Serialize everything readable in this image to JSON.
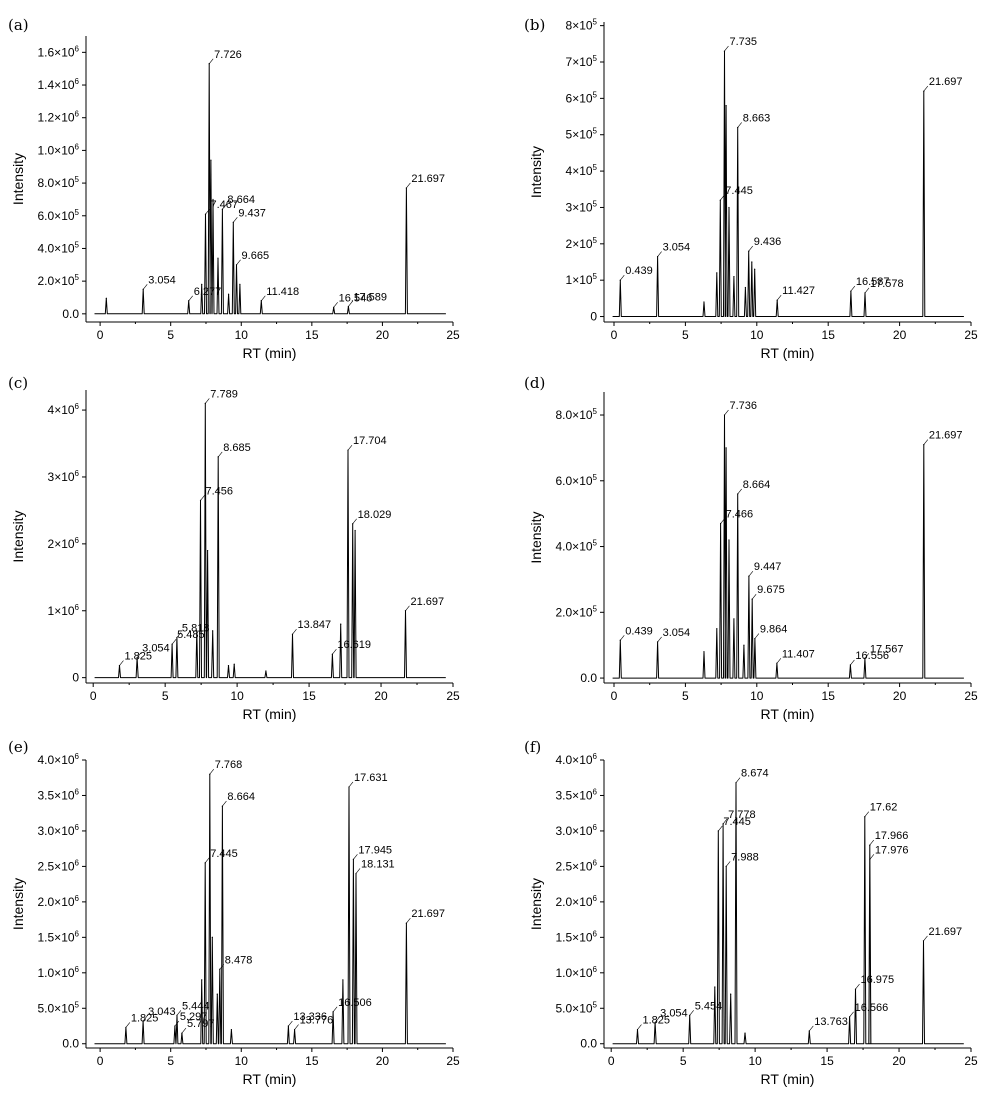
{
  "chart_data": [
    {
      "type": "line",
      "panel_label": "(a)",
      "xlabel": "RT (min)",
      "ylabel": "Intensity",
      "xlim": [
        -1,
        25
      ],
      "ylim": [
        -50000,
        1700000
      ],
      "xticks": [
        "0",
        "5",
        "10",
        "15",
        "20",
        "25"
      ],
      "yticks": [
        {
          "base": "0.0",
          "exp": ""
        },
        {
          "base": "2.0×10",
          "exp": "5"
        },
        {
          "base": "4.0×10",
          "exp": "5"
        },
        {
          "base": "6.0×10",
          "exp": "5"
        },
        {
          "base": "8.0×10",
          "exp": "5"
        },
        {
          "base": "1.0×10",
          "exp": "6"
        },
        {
          "base": "1.2×10",
          "exp": "6"
        },
        {
          "base": "1.4×10",
          "exp": "6"
        },
        {
          "base": "1.6×10",
          "exp": "6"
        }
      ],
      "ytick_values": [
        0,
        200000,
        400000,
        600000,
        800000,
        1000000,
        1200000,
        1400000,
        1600000
      ],
      "xtick_values": [
        0,
        5,
        10,
        15,
        20,
        25
      ],
      "peaks": [
        {
          "rt": 0.44,
          "y": 95000
        },
        {
          "rt": 3.054,
          "y": 150000,
          "label": "3.054"
        },
        {
          "rt": 6.277,
          "y": 80000,
          "label": "6.277"
        },
        {
          "rt": 7.2,
          "y": 180000
        },
        {
          "rt": 7.467,
          "y": 610000,
          "label": "7.467"
        },
        {
          "rt": 7.726,
          "y": 1530000,
          "label": "7.726"
        },
        {
          "rt": 7.85,
          "y": 940000
        },
        {
          "rt": 8.0,
          "y": 700000
        },
        {
          "rt": 8.35,
          "y": 340000
        },
        {
          "rt": 8.664,
          "y": 640000,
          "label": "8.664"
        },
        {
          "rt": 9.1,
          "y": 120000
        },
        {
          "rt": 9.437,
          "y": 560000,
          "label": "9.437"
        },
        {
          "rt": 9.665,
          "y": 300000,
          "label": "9.665"
        },
        {
          "rt": 9.9,
          "y": 180000
        },
        {
          "rt": 11.418,
          "y": 80000,
          "label": "11.418"
        },
        {
          "rt": 16.546,
          "y": 40000,
          "label": "16.546"
        },
        {
          "rt": 17.589,
          "y": 45000,
          "label": "17.589"
        },
        {
          "rt": 21.697,
          "y": 770000,
          "label": "21.697"
        }
      ]
    },
    {
      "type": "line",
      "panel_label": "(b)",
      "xlabel": "RT (min)",
      "ylabel": "Intensity",
      "xlim": [
        -0.7,
        25
      ],
      "ylim": [
        -15000,
        810000
      ],
      "xticks": [
        "0",
        "5",
        "10",
        "15",
        "20",
        "25"
      ],
      "yticks": [
        {
          "base": "0",
          "exp": ""
        },
        {
          "base": "1×10",
          "exp": "5"
        },
        {
          "base": "2×10",
          "exp": "5"
        },
        {
          "base": "3×10",
          "exp": "5"
        },
        {
          "base": "4×10",
          "exp": "5"
        },
        {
          "base": "5×10",
          "exp": "5"
        },
        {
          "base": "6×10",
          "exp": "5"
        },
        {
          "base": "7×10",
          "exp": "5"
        },
        {
          "base": "8×10",
          "exp": "5"
        }
      ],
      "ytick_values": [
        0,
        100000,
        200000,
        300000,
        400000,
        500000,
        600000,
        700000,
        800000
      ],
      "xtick_values": [
        0,
        5,
        10,
        15,
        20,
        25
      ],
      "peaks": [
        {
          "rt": 0.439,
          "y": 100000,
          "label": "0.439"
        },
        {
          "rt": 3.054,
          "y": 165000,
          "label": "3.054"
        },
        {
          "rt": 6.3,
          "y": 40000
        },
        {
          "rt": 7.2,
          "y": 120000
        },
        {
          "rt": 7.445,
          "y": 320000,
          "label": "7.445"
        },
        {
          "rt": 7.735,
          "y": 730000,
          "label": "7.735"
        },
        {
          "rt": 7.85,
          "y": 580000
        },
        {
          "rt": 8.05,
          "y": 300000
        },
        {
          "rt": 8.4,
          "y": 110000
        },
        {
          "rt": 8.663,
          "y": 520000,
          "label": "8.663"
        },
        {
          "rt": 9.2,
          "y": 80000
        },
        {
          "rt": 9.436,
          "y": 180000,
          "label": "9.436"
        },
        {
          "rt": 9.65,
          "y": 150000
        },
        {
          "rt": 9.85,
          "y": 130000
        },
        {
          "rt": 11.427,
          "y": 45000,
          "label": "11.427"
        },
        {
          "rt": 16.587,
          "y": 70000,
          "label": "16.587"
        },
        {
          "rt": 17.578,
          "y": 65000,
          "label": "17.578"
        },
        {
          "rt": 21.697,
          "y": 620000,
          "label": "21.697"
        }
      ]
    },
    {
      "type": "line",
      "panel_label": "(c)",
      "xlabel": "RT (min)",
      "ylabel": "Intensity",
      "xlim": [
        -0.5,
        25
      ],
      "ylim": [
        -80000,
        4300000
      ],
      "xticks": [
        "0",
        "5",
        "10",
        "15",
        "20",
        "25"
      ],
      "yticks": [
        {
          "base": "0",
          "exp": ""
        },
        {
          "base": "1×10",
          "exp": "6"
        },
        {
          "base": "2×10",
          "exp": "6"
        },
        {
          "base": "3×10",
          "exp": "6"
        },
        {
          "base": "4×10",
          "exp": "6"
        }
      ],
      "ytick_values": [
        0,
        1000000,
        2000000,
        3000000,
        4000000
      ],
      "xtick_values": [
        0,
        5,
        10,
        15,
        20,
        25
      ],
      "peaks": [
        {
          "rt": 1.825,
          "y": 180000,
          "label": "1.825"
        },
        {
          "rt": 3.054,
          "y": 300000,
          "label": "3.054"
        },
        {
          "rt": 5.485,
          "y": 500000,
          "label": "5.485"
        },
        {
          "rt": 5.818,
          "y": 600000,
          "label": "5.818"
        },
        {
          "rt": 7.2,
          "y": 700000
        },
        {
          "rt": 7.456,
          "y": 2650000,
          "label": "7.456"
        },
        {
          "rt": 7.789,
          "y": 4100000,
          "label": "7.789"
        },
        {
          "rt": 7.95,
          "y": 1900000
        },
        {
          "rt": 8.3,
          "y": 700000
        },
        {
          "rt": 8.685,
          "y": 3300000,
          "label": "8.685"
        },
        {
          "rt": 9.4,
          "y": 180000
        },
        {
          "rt": 9.8,
          "y": 200000
        },
        {
          "rt": 12.0,
          "y": 100000
        },
        {
          "rt": 13.847,
          "y": 650000,
          "label": "13.847"
        },
        {
          "rt": 16.619,
          "y": 350000,
          "label": "16.619"
        },
        {
          "rt": 17.2,
          "y": 800000
        },
        {
          "rt": 17.704,
          "y": 3400000,
          "label": "17.704"
        },
        {
          "rt": 18.029,
          "y": 2300000,
          "label": "18.029"
        },
        {
          "rt": 18.2,
          "y": 2200000
        },
        {
          "rt": 21.697,
          "y": 1000000,
          "label": "21.697"
        }
      ]
    },
    {
      "type": "line",
      "panel_label": "(d)",
      "xlabel": "RT (min)",
      "ylabel": "Intensity",
      "xlim": [
        -0.7,
        25
      ],
      "ylim": [
        -15000,
        870000
      ],
      "xticks": [
        "0",
        "5",
        "10",
        "15",
        "20",
        "25"
      ],
      "yticks": [
        {
          "base": "0.0",
          "exp": ""
        },
        {
          "base": "2.0×10",
          "exp": "5"
        },
        {
          "base": "4.0×10",
          "exp": "5"
        },
        {
          "base": "6.0×10",
          "exp": "5"
        },
        {
          "base": "8.0×10",
          "exp": "5"
        }
      ],
      "ytick_values": [
        0,
        200000,
        400000,
        600000,
        800000
      ],
      "xtick_values": [
        0,
        5,
        10,
        15,
        20,
        25
      ],
      "peaks": [
        {
          "rt": 0.439,
          "y": 115000,
          "label": "0.439"
        },
        {
          "rt": 3.054,
          "y": 110000,
          "label": "3.054"
        },
        {
          "rt": 6.3,
          "y": 80000
        },
        {
          "rt": 7.2,
          "y": 150000
        },
        {
          "rt": 7.466,
          "y": 470000,
          "label": "7.466"
        },
        {
          "rt": 7.736,
          "y": 800000,
          "label": "7.736"
        },
        {
          "rt": 7.85,
          "y": 700000
        },
        {
          "rt": 8.05,
          "y": 420000
        },
        {
          "rt": 8.4,
          "y": 180000
        },
        {
          "rt": 8.664,
          "y": 560000,
          "label": "8.664"
        },
        {
          "rt": 9.1,
          "y": 100000
        },
        {
          "rt": 9.447,
          "y": 310000,
          "label": "9.447"
        },
        {
          "rt": 9.675,
          "y": 240000,
          "label": "9.675"
        },
        {
          "rt": 9.864,
          "y": 120000,
          "label": "9.864"
        },
        {
          "rt": 11.407,
          "y": 45000,
          "label": "11.407"
        },
        {
          "rt": 16.556,
          "y": 40000,
          "label": "16.556"
        },
        {
          "rt": 17.567,
          "y": 60000,
          "label": "17.567"
        },
        {
          "rt": 21.697,
          "y": 710000,
          "label": "21.697"
        }
      ]
    },
    {
      "type": "line",
      "panel_label": "(e)",
      "xlabel": "RT (min)",
      "ylabel": "Intensity",
      "xlim": [
        -1,
        25
      ],
      "ylim": [
        -60000,
        4000000
      ],
      "xticks": [
        "0",
        "5",
        "10",
        "15",
        "20",
        "25"
      ],
      "yticks": [
        {
          "base": "0.0",
          "exp": ""
        },
        {
          "base": "5.0×10",
          "exp": "5"
        },
        {
          "base": "1.0×10",
          "exp": "6"
        },
        {
          "base": "1.5×10",
          "exp": "6"
        },
        {
          "base": "2.0×10",
          "exp": "6"
        },
        {
          "base": "2.5×10",
          "exp": "6"
        },
        {
          "base": "3.0×10",
          "exp": "6"
        },
        {
          "base": "3.5×10",
          "exp": "6"
        },
        {
          "base": "4.0×10",
          "exp": "6"
        }
      ],
      "ytick_values": [
        0,
        500000,
        1000000,
        1500000,
        2000000,
        2500000,
        3000000,
        3500000,
        4000000
      ],
      "xtick_values": [
        0,
        5,
        10,
        15,
        20,
        25
      ],
      "peaks": [
        {
          "rt": 1.825,
          "y": 230000,
          "label": "1.825"
        },
        {
          "rt": 3.043,
          "y": 320000,
          "label": "3.043"
        },
        {
          "rt": 5.297,
          "y": 250000,
          "label": "5.297"
        },
        {
          "rt": 5.444,
          "y": 400000,
          "label": "5.444"
        },
        {
          "rt": 5.797,
          "y": 150000,
          "label": "5.797"
        },
        {
          "rt": 7.2,
          "y": 900000
        },
        {
          "rt": 7.445,
          "y": 2550000,
          "label": "7.445"
        },
        {
          "rt": 7.768,
          "y": 3800000,
          "label": "7.768"
        },
        {
          "rt": 7.95,
          "y": 1500000
        },
        {
          "rt": 8.3,
          "y": 700000
        },
        {
          "rt": 8.478,
          "y": 1050000,
          "label": "8.478"
        },
        {
          "rt": 8.664,
          "y": 3350000,
          "label": "8.664"
        },
        {
          "rt": 9.3,
          "y": 200000
        },
        {
          "rt": 13.336,
          "y": 250000,
          "label": "13.336"
        },
        {
          "rt": 13.776,
          "y": 200000,
          "label": "13.776"
        },
        {
          "rt": 16.506,
          "y": 450000,
          "label": "16.506"
        },
        {
          "rt": 17.2,
          "y": 900000
        },
        {
          "rt": 17.631,
          "y": 3620000,
          "label": "17.631"
        },
        {
          "rt": 17.945,
          "y": 2600000,
          "label": "17.945"
        },
        {
          "rt": 18.131,
          "y": 2400000,
          "label": "18.131"
        },
        {
          "rt": 21.697,
          "y": 1700000,
          "label": "21.697"
        }
      ]
    },
    {
      "type": "line",
      "panel_label": "(f)",
      "xlabel": "RT (min)",
      "ylabel": "Intensity",
      "xlim": [
        -0.5,
        25
      ],
      "ylim": [
        -60000,
        4000000
      ],
      "xticks": [
        "0",
        "5",
        "10",
        "15",
        "20",
        "25"
      ],
      "yticks": [
        {
          "base": "0.0",
          "exp": ""
        },
        {
          "base": "5.0×10",
          "exp": "5"
        },
        {
          "base": "1.0×10",
          "exp": "6"
        },
        {
          "base": "1.5×10",
          "exp": "6"
        },
        {
          "base": "2.0×10",
          "exp": "6"
        },
        {
          "base": "2.5×10",
          "exp": "6"
        },
        {
          "base": "3.0×10",
          "exp": "6"
        },
        {
          "base": "3.5×10",
          "exp": "6"
        },
        {
          "base": "4.0×10",
          "exp": "6"
        }
      ],
      "ytick_values": [
        0,
        500000,
        1000000,
        1500000,
        2000000,
        2500000,
        3000000,
        3500000,
        4000000
      ],
      "xtick_values": [
        0,
        5,
        10,
        15,
        20,
        25
      ],
      "peaks": [
        {
          "rt": 1.825,
          "y": 200000,
          "label": "1.825"
        },
        {
          "rt": 3.054,
          "y": 300000,
          "label": "3.054"
        },
        {
          "rt": 5.454,
          "y": 400000,
          "label": "5.454"
        },
        {
          "rt": 7.2,
          "y": 800000
        },
        {
          "rt": 7.445,
          "y": 3000000,
          "label": "7.445"
        },
        {
          "rt": 7.778,
          "y": 3100000,
          "label": "7.778"
        },
        {
          "rt": 7.988,
          "y": 2500000,
          "label": "7.988"
        },
        {
          "rt": 8.3,
          "y": 700000
        },
        {
          "rt": 8.674,
          "y": 3680000,
          "label": "8.674"
        },
        {
          "rt": 9.3,
          "y": 150000
        },
        {
          "rt": 13.763,
          "y": 180000,
          "label": "13.763"
        },
        {
          "rt": 16.566,
          "y": 380000,
          "label": "16.566"
        },
        {
          "rt": 16.975,
          "y": 770000,
          "label": "16.975"
        },
        {
          "rt": 17.62,
          "y": 3200000,
          "label": "17.62"
        },
        {
          "rt": 17.966,
          "y": 2800000,
          "label": "17.966"
        },
        {
          "rt": 17.976,
          "y": 2600000,
          "label": "17.976"
        },
        {
          "rt": 21.697,
          "y": 1450000,
          "label": "21.697"
        }
      ]
    }
  ]
}
